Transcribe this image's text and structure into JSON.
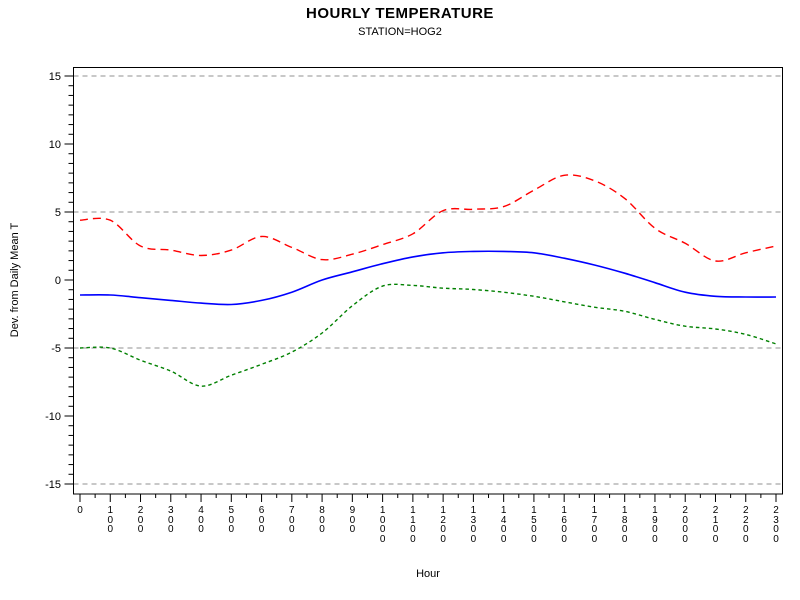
{
  "header": {
    "title": "HOURLY TEMPERATURE",
    "subtitle": "STATION=HOG2"
  },
  "colors": {
    "background": "#ffffff",
    "axis": "#000000",
    "reference_line": "#909090",
    "red_series": "#ff0000",
    "blue_series": "#0000ff",
    "green_series": "#008000"
  },
  "chart_data": {
    "type": "line",
    "title": "HOURLY TEMPERATURE",
    "subtitle": "STATION=HOG2",
    "xlabel": "Hour",
    "ylabel": "Dev. from Daily Mean T",
    "x_tick_labels": [
      "0",
      "100",
      "200",
      "300",
      "400",
      "500",
      "600",
      "700",
      "800",
      "900",
      "1000",
      "1100",
      "1200",
      "1300",
      "1400",
      "1500",
      "1600",
      "1700",
      "1800",
      "1900",
      "2000",
      "2100",
      "2200",
      "2300"
    ],
    "y_major_ticks": [
      15,
      10,
      5,
      0,
      -5,
      -10,
      -15
    ],
    "y_minor_per_interval": 6,
    "x_minor_per_interval": 1,
    "ylim": [
      -15.7,
      15.7
    ],
    "reference_lines": [
      15,
      5,
      -5,
      -15
    ],
    "grid": false,
    "legend_position": "none",
    "series": [
      {
        "name": "red-dashed-upper",
        "color": "#ff0000",
        "line_style": "dashed",
        "values": [
          4.4,
          4.4,
          2.5,
          2.2,
          1.8,
          2.2,
          3.2,
          2.4,
          1.5,
          1.9,
          2.6,
          3.4,
          5.1,
          5.2,
          5.4,
          6.6,
          7.7,
          7.3,
          6.0,
          3.8,
          2.7,
          1.4,
          2.0,
          2.5
        ]
      },
      {
        "name": "blue-solid-middle",
        "color": "#0000ff",
        "line_style": "solid",
        "values": [
          -1.1,
          -1.1,
          -1.3,
          -1.5,
          -1.7,
          -1.8,
          -1.5,
          -0.9,
          0.0,
          0.6,
          1.2,
          1.7,
          2.0,
          2.1,
          2.1,
          2.0,
          1.6,
          1.1,
          0.5,
          -0.2,
          -0.9,
          -1.2,
          -1.25,
          -1.25
        ]
      },
      {
        "name": "green-dashed-lower",
        "color": "#008000",
        "line_style": "short-dash",
        "values": [
          -5.0,
          -5.0,
          -5.9,
          -6.7,
          -7.8,
          -7.0,
          -6.2,
          -5.3,
          -3.9,
          -1.9,
          -0.45,
          -0.4,
          -0.6,
          -0.7,
          -0.9,
          -1.2,
          -1.6,
          -2.0,
          -2.3,
          -2.9,
          -3.4,
          -3.6,
          -4.0,
          -4.7
        ]
      }
    ]
  }
}
